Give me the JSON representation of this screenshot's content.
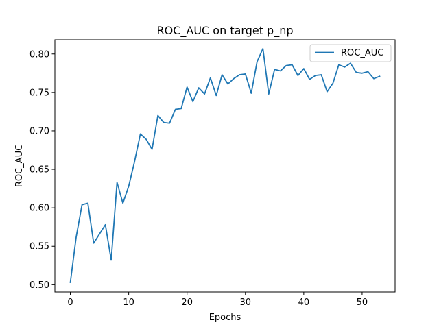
{
  "chart_data": {
    "type": "line",
    "title": "ROC_AUC on target p_np",
    "xlabel": "Epochs",
    "ylabel": "ROC_AUC",
    "xlim": [
      -2.65,
      55.65
    ],
    "ylim": [
      0.4905,
      0.8185
    ],
    "xticks": [
      0,
      10,
      20,
      30,
      40,
      50
    ],
    "xtick_labels": [
      "0",
      "10",
      "20",
      "30",
      "40",
      "50"
    ],
    "yticks": [
      0.5,
      0.55,
      0.6,
      0.65,
      0.7,
      0.75,
      0.8
    ],
    "ytick_labels": [
      "0.50",
      "0.55",
      "0.60",
      "0.65",
      "0.70",
      "0.75",
      "0.80"
    ],
    "grid": false,
    "legend": {
      "position": "top-right"
    },
    "series": [
      {
        "name": "ROC_AUC",
        "color": "#1f77b4",
        "x": [
          0,
          1,
          2,
          3,
          4,
          5,
          6,
          7,
          8,
          9,
          10,
          11,
          12,
          13,
          14,
          15,
          16,
          17,
          18,
          19,
          20,
          21,
          22,
          23,
          24,
          25,
          26,
          27,
          28,
          29,
          30,
          31,
          32,
          33,
          34,
          35,
          36,
          37,
          38,
          39,
          40,
          41,
          42,
          43,
          44,
          45,
          46,
          47,
          48,
          49,
          50,
          51,
          52,
          53
        ],
        "values": [
          0.503,
          0.562,
          0.604,
          0.606,
          0.554,
          0.566,
          0.578,
          0.532,
          0.633,
          0.606,
          0.628,
          0.66,
          0.696,
          0.689,
          0.676,
          0.72,
          0.711,
          0.71,
          0.728,
          0.729,
          0.757,
          0.738,
          0.756,
          0.748,
          0.769,
          0.746,
          0.773,
          0.761,
          0.768,
          0.773,
          0.774,
          0.749,
          0.79,
          0.807,
          0.748,
          0.78,
          0.778,
          0.785,
          0.786,
          0.772,
          0.781,
          0.767,
          0.772,
          0.773,
          0.751,
          0.762,
          0.786,
          0.783,
          0.788,
          0.776,
          0.775,
          0.777,
          0.768,
          0.771
        ]
      }
    ]
  }
}
